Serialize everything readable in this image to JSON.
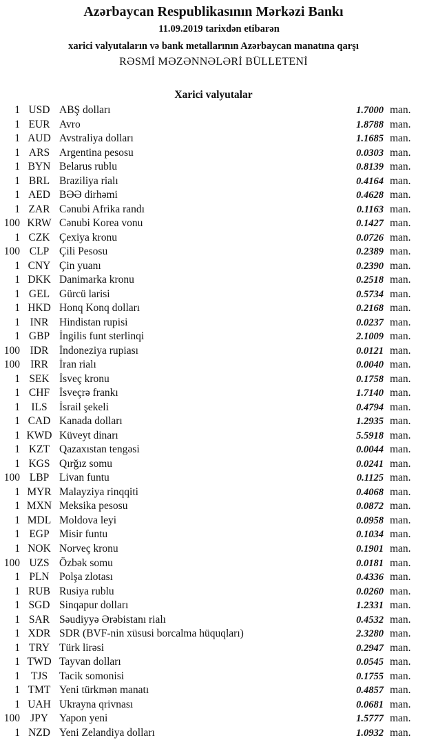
{
  "header": {
    "bank": "Azərbaycan Respublikasının Mərkəzi Bankı",
    "date_line": "11.09.2019  tarixdən etibarən",
    "subtitle": "xarici valyutaların və bank metallarının Azərbaycan manatına qarşı",
    "bulletin": "RƏSMİ MƏZƏNNƏLƏRİ BÜLLETENİ",
    "section": "Xarici valyutalar"
  },
  "unit": "man.",
  "currencies": [
    {
      "amount": "1",
      "code": "USD",
      "name": "ABŞ dolları",
      "rate": "1.7000"
    },
    {
      "amount": "1",
      "code": "EUR",
      "name": "Avro",
      "rate": "1.8788"
    },
    {
      "amount": "1",
      "code": "AUD",
      "name": "Avstraliya dolları",
      "rate": "1.1685"
    },
    {
      "amount": "1",
      "code": "ARS",
      "name": "Argentina pesosu",
      "rate": "0.0303"
    },
    {
      "amount": "1",
      "code": "BYN",
      "name": "Belarus rublu",
      "rate": "0.8139"
    },
    {
      "amount": "1",
      "code": "BRL",
      "name": "Braziliya rialı",
      "rate": "0.4164"
    },
    {
      "amount": "1",
      "code": "AED",
      "name": "BƏƏ dirhəmi",
      "rate": "0.4628"
    },
    {
      "amount": "1",
      "code": "ZAR",
      "name": "Cənubi Afrika randı",
      "rate": "0.1163"
    },
    {
      "amount": "100",
      "code": "KRW",
      "name": "Cənubi Korea vonu",
      "rate": "0.1427"
    },
    {
      "amount": "1",
      "code": "CZK",
      "name": "Çexiya kronu",
      "rate": "0.0726"
    },
    {
      "amount": "100",
      "code": "CLP",
      "name": "Çili Pesosu",
      "rate": "0.2389"
    },
    {
      "amount": "1",
      "code": "CNY",
      "name": "Çin yuanı",
      "rate": "0.2390"
    },
    {
      "amount": "1",
      "code": "DKK",
      "name": "Danimarka kronu",
      "rate": "0.2518"
    },
    {
      "amount": "1",
      "code": "GEL",
      "name": "Gürcü larisi",
      "rate": "0.5734"
    },
    {
      "amount": "1",
      "code": "HKD",
      "name": "Honq Konq dolları",
      "rate": "0.2168"
    },
    {
      "amount": "1",
      "code": "INR",
      "name": "Hindistan rupisi",
      "rate": "0.0237"
    },
    {
      "amount": "1",
      "code": "GBP",
      "name": "İngilis funt sterlinqi",
      "rate": "2.1009"
    },
    {
      "amount": "100",
      "code": "IDR",
      "name": "İndoneziya rupiası",
      "rate": "0.0121"
    },
    {
      "amount": "100",
      "code": "IRR",
      "name": "İran rialı",
      "rate": "0.0040"
    },
    {
      "amount": "1",
      "code": "SEK",
      "name": "İsveç kronu",
      "rate": "0.1758"
    },
    {
      "amount": "1",
      "code": "CHF",
      "name": "İsveçrə frankı",
      "rate": "1.7140"
    },
    {
      "amount": "1",
      "code": "ILS",
      "name": "İsrail şekeli",
      "rate": "0.4794"
    },
    {
      "amount": "1",
      "code": "CAD",
      "name": "Kanada dolları",
      "rate": "1.2935"
    },
    {
      "amount": "1",
      "code": "KWD",
      "name": "Küveyt dinarı",
      "rate": "5.5918"
    },
    {
      "amount": "1",
      "code": "KZT",
      "name": "Qazaxıstan tengəsi",
      "rate": "0.0044"
    },
    {
      "amount": "1",
      "code": "KGS",
      "name": "Qırğız somu",
      "rate": "0.0241"
    },
    {
      "amount": "100",
      "code": "LBP",
      "name": "Livan funtu",
      "rate": "0.1125"
    },
    {
      "amount": "1",
      "code": "MYR",
      "name": "Malayziya rinqqiti",
      "rate": "0.4068"
    },
    {
      "amount": "1",
      "code": "MXN",
      "name": "Meksika pesosu",
      "rate": "0.0872"
    },
    {
      "amount": "1",
      "code": "MDL",
      "name": "Moldova leyi",
      "rate": "0.0958"
    },
    {
      "amount": "1",
      "code": "EGP",
      "name": "Misir funtu",
      "rate": "0.1034"
    },
    {
      "amount": "1",
      "code": "NOK",
      "name": "Norveç kronu",
      "rate": "0.1901"
    },
    {
      "amount": "100",
      "code": "UZS",
      "name": "Özbək somu",
      "rate": "0.0181"
    },
    {
      "amount": "1",
      "code": "PLN",
      "name": "Polşa zlotası",
      "rate": "0.4336"
    },
    {
      "amount": "1",
      "code": "RUB",
      "name": "Rusiya rublu",
      "rate": "0.0260"
    },
    {
      "amount": "1",
      "code": "SGD",
      "name": "Sinqapur dolları",
      "rate": "1.2331"
    },
    {
      "amount": "1",
      "code": "SAR",
      "name": "Səudiyyə Ərəbistanı rialı",
      "rate": "0.4532"
    },
    {
      "amount": "1",
      "code": "XDR",
      "name": "SDR (BVF-nin xüsusi borcalma hüquqları)",
      "rate": "2.3280"
    },
    {
      "amount": "1",
      "code": "TRY",
      "name": "Türk lirəsi",
      "rate": "0.2947"
    },
    {
      "amount": "1",
      "code": "TWD",
      "name": "Tayvan dolları",
      "rate": "0.0545"
    },
    {
      "amount": "1",
      "code": "TJS",
      "name": "Tacik somonisi",
      "rate": "0.1755"
    },
    {
      "amount": "1",
      "code": "TMT",
      "name": "Yeni türkmən manatı",
      "rate": "0.4857"
    },
    {
      "amount": "1",
      "code": "UAH",
      "name": "Ukrayna qrivnası",
      "rate": "0.0681"
    },
    {
      "amount": "100",
      "code": "JPY",
      "name": "Yapon yeni",
      "rate": "1.5777"
    },
    {
      "amount": "1",
      "code": "NZD",
      "name": "Yeni Zelandiya dolları",
      "rate": "1.0932"
    }
  ]
}
